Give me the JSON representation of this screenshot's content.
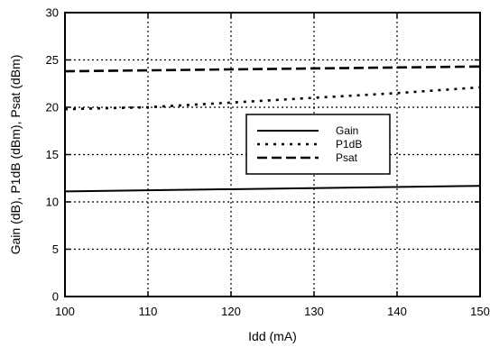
{
  "chart_data": {
    "type": "line",
    "xlabel": "Idd (mA)",
    "ylabel": "Gain (dB), P1dB (dBm), Psat (dBm)",
    "xlim": [
      100,
      150
    ],
    "ylim": [
      0,
      30
    ],
    "xticks": [
      100,
      110,
      120,
      130,
      140,
      150
    ],
    "yticks": [
      0,
      5,
      10,
      15,
      20,
      25,
      30
    ],
    "grid": true,
    "legend_position": "center-right",
    "series": [
      {
        "name": "Gain",
        "style": "solid",
        "color": "#000000",
        "x": [
          100,
          150
        ],
        "y": [
          11.1,
          11.7
        ]
      },
      {
        "name": "P1dB",
        "style": "dotted",
        "color": "#000000",
        "x": [
          100,
          110,
          120,
          130,
          140,
          150
        ],
        "y": [
          19.8,
          20.0,
          20.5,
          21.0,
          21.5,
          22.1
        ]
      },
      {
        "name": "Psat",
        "style": "dashed",
        "color": "#000000",
        "x": [
          100,
          150
        ],
        "y": [
          23.8,
          24.3
        ]
      }
    ]
  }
}
